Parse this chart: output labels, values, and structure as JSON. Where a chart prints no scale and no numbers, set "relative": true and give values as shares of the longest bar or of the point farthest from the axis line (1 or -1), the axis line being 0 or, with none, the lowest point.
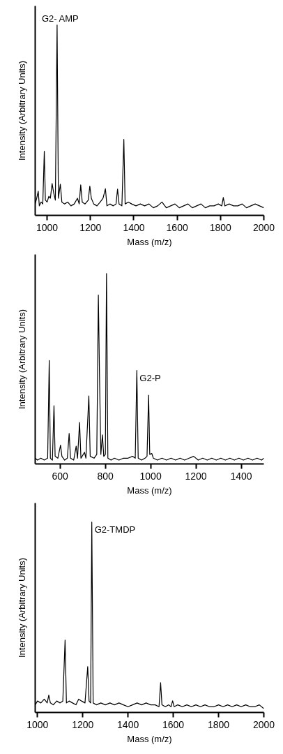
{
  "chart_data": [
    {
      "type": "line",
      "relative": true,
      "xlabel": "Mass (m/z)",
      "ylabel": "Intensity (Arbitrary Units)",
      "xlim": [
        945,
        2000
      ],
      "xticks": [
        1000,
        1200,
        1400,
        1600,
        1800,
        2000
      ],
      "grid": false,
      "marker": "none",
      "line_style": "solid",
      "annotations": [
        {
          "text": "G2- AMP",
          "x": 1046,
          "y": 1.0
        }
      ],
      "series": [
        {
          "color": "#000000",
          "x": [
            945,
            952,
            959,
            964,
            972,
            980,
            987,
            992,
            1000,
            1008,
            1015,
            1023,
            1030,
            1038,
            1046,
            1052,
            1061,
            1068,
            1080,
            1095,
            1110,
            1125,
            1140,
            1148,
            1155,
            1162,
            1175,
            1190,
            1197,
            1204,
            1215,
            1230,
            1245,
            1258,
            1269,
            1276,
            1290,
            1305,
            1318,
            1325,
            1332,
            1345,
            1354,
            1360,
            1375,
            1390,
            1410,
            1430,
            1450,
            1470,
            1490,
            1510,
            1530,
            1550,
            1570,
            1590,
            1610,
            1630,
            1650,
            1670,
            1690,
            1710,
            1730,
            1750,
            1770,
            1790,
            1806,
            1813,
            1820,
            1840,
            1860,
            1880,
            1900,
            1920,
            1940,
            1960,
            1980,
            2000
          ],
          "values": [
            0.06,
            0.09,
            0.127,
            0.05,
            0.07,
            0.06,
            0.337,
            0.08,
            0.07,
            0.1,
            0.09,
            0.167,
            0.12,
            0.08,
            1.0,
            0.09,
            0.164,
            0.07,
            0.06,
            0.07,
            0.05,
            0.06,
            0.09,
            0.06,
            0.16,
            0.07,
            0.06,
            0.08,
            0.154,
            0.09,
            0.06,
            0.05,
            0.07,
            0.09,
            0.14,
            0.05,
            0.06,
            0.05,
            0.06,
            0.138,
            0.06,
            0.05,
            0.399,
            0.06,
            0.07,
            0.06,
            0.05,
            0.06,
            0.05,
            0.06,
            0.04,
            0.05,
            0.07,
            0.04,
            0.05,
            0.06,
            0.04,
            0.05,
            0.06,
            0.04,
            0.05,
            0.06,
            0.04,
            0.05,
            0.05,
            0.06,
            0.05,
            0.094,
            0.05,
            0.06,
            0.05,
            0.05,
            0.06,
            0.04,
            0.05,
            0.06,
            0.05,
            0.04
          ]
        }
      ]
    },
    {
      "type": "line",
      "relative": true,
      "xlabel": "Mass (m/z)",
      "ylabel": "Intensity (Arbitrary Units)",
      "xlim": [
        490,
        1500
      ],
      "xticks": [
        600,
        800,
        1000,
        1200,
        1400
      ],
      "grid": false,
      "marker": "none",
      "line_style": "solid",
      "annotations": [
        {
          "text": "G2-P",
          "x": 939,
          "y": 0.491
        }
      ],
      "series": [
        {
          "color": "#000000",
          "x": [
            490,
            500,
            515,
            530,
            545,
            552,
            557,
            566,
            573,
            578,
            590,
            602,
            608,
            620,
            632,
            640,
            646,
            660,
            671,
            677,
            686,
            692,
            708,
            714,
            727,
            733,
            750,
            762,
            769,
            774,
            780,
            787,
            793,
            800,
            805,
            811,
            825,
            840,
            860,
            880,
            900,
            920,
            932,
            939,
            945,
            960,
            975,
            984,
            991,
            996,
            1005,
            1012,
            1030,
            1050,
            1070,
            1090,
            1110,
            1130,
            1150,
            1170,
            1190,
            1210,
            1230,
            1250,
            1270,
            1290,
            1310,
            1330,
            1350,
            1370,
            1390,
            1410,
            1430,
            1450,
            1470,
            1490,
            1500
          ],
          "values": [
            0.03,
            0.02,
            0.03,
            0.02,
            0.03,
            0.543,
            0.03,
            0.02,
            0.306,
            0.04,
            0.03,
            0.099,
            0.04,
            0.02,
            0.03,
            0.16,
            0.03,
            0.02,
            0.093,
            0.03,
            0.218,
            0.03,
            0.061,
            0.03,
            0.357,
            0.04,
            0.03,
            0.05,
            0.887,
            0.469,
            0.05,
            0.153,
            0.04,
            0.05,
            1.0,
            0.03,
            0.02,
            0.03,
            0.02,
            0.03,
            0.03,
            0.04,
            0.03,
            0.491,
            0.03,
            0.02,
            0.03,
            0.04,
            0.361,
            0.05,
            0.055,
            0.03,
            0.02,
            0.03,
            0.02,
            0.03,
            0.02,
            0.03,
            0.02,
            0.03,
            0.04,
            0.02,
            0.03,
            0.02,
            0.03,
            0.02,
            0.03,
            0.02,
            0.03,
            0.02,
            0.03,
            0.02,
            0.03,
            0.02,
            0.03,
            0.02,
            0.03
          ]
        }
      ]
    },
    {
      "type": "line",
      "relative": true,
      "xlabel": "Mass (m/z)",
      "ylabel": "Intensity (Arbitrary Units)",
      "xlim": [
        990,
        2000
      ],
      "xticks": [
        1000,
        1200,
        1400,
        1600,
        1800,
        2000
      ],
      "grid": false,
      "marker": "none",
      "line_style": "solid",
      "annotations": [
        {
          "text": "G2-TMDP",
          "x": 1240,
          "y": 1.0
        }
      ],
      "series": [
        {
          "color": "#000000",
          "x": [
            990,
            1000,
            1015,
            1030,
            1043,
            1050,
            1057,
            1070,
            1085,
            1100,
            1112,
            1122,
            1128,
            1140,
            1155,
            1170,
            1182,
            1195,
            1210,
            1222,
            1228,
            1235,
            1240,
            1246,
            1260,
            1280,
            1300,
            1320,
            1340,
            1360,
            1380,
            1400,
            1420,
            1440,
            1460,
            1480,
            1500,
            1520,
            1537,
            1544,
            1550,
            1565,
            1580,
            1590,
            1597,
            1604,
            1620,
            1640,
            1660,
            1680,
            1700,
            1720,
            1740,
            1760,
            1780,
            1800,
            1820,
            1840,
            1860,
            1880,
            1900,
            1920,
            1940,
            1960,
            1980,
            2000
          ],
          "values": [
            0.04,
            0.06,
            0.05,
            0.07,
            0.05,
            0.091,
            0.05,
            0.04,
            0.06,
            0.05,
            0.06,
            0.38,
            0.05,
            0.06,
            0.05,
            0.04,
            0.07,
            0.06,
            0.05,
            0.241,
            0.06,
            0.05,
            1.0,
            0.05,
            0.04,
            0.05,
            0.04,
            0.05,
            0.04,
            0.05,
            0.04,
            0.03,
            0.04,
            0.05,
            0.04,
            0.05,
            0.04,
            0.04,
            0.03,
            0.156,
            0.04,
            0.03,
            0.04,
            0.03,
            0.061,
            0.03,
            0.04,
            0.03,
            0.04,
            0.03,
            0.04,
            0.03,
            0.04,
            0.03,
            0.03,
            0.04,
            0.03,
            0.04,
            0.03,
            0.04,
            0.03,
            0.04,
            0.03,
            0.03,
            0.04,
            0.02
          ]
        }
      ]
    }
  ]
}
